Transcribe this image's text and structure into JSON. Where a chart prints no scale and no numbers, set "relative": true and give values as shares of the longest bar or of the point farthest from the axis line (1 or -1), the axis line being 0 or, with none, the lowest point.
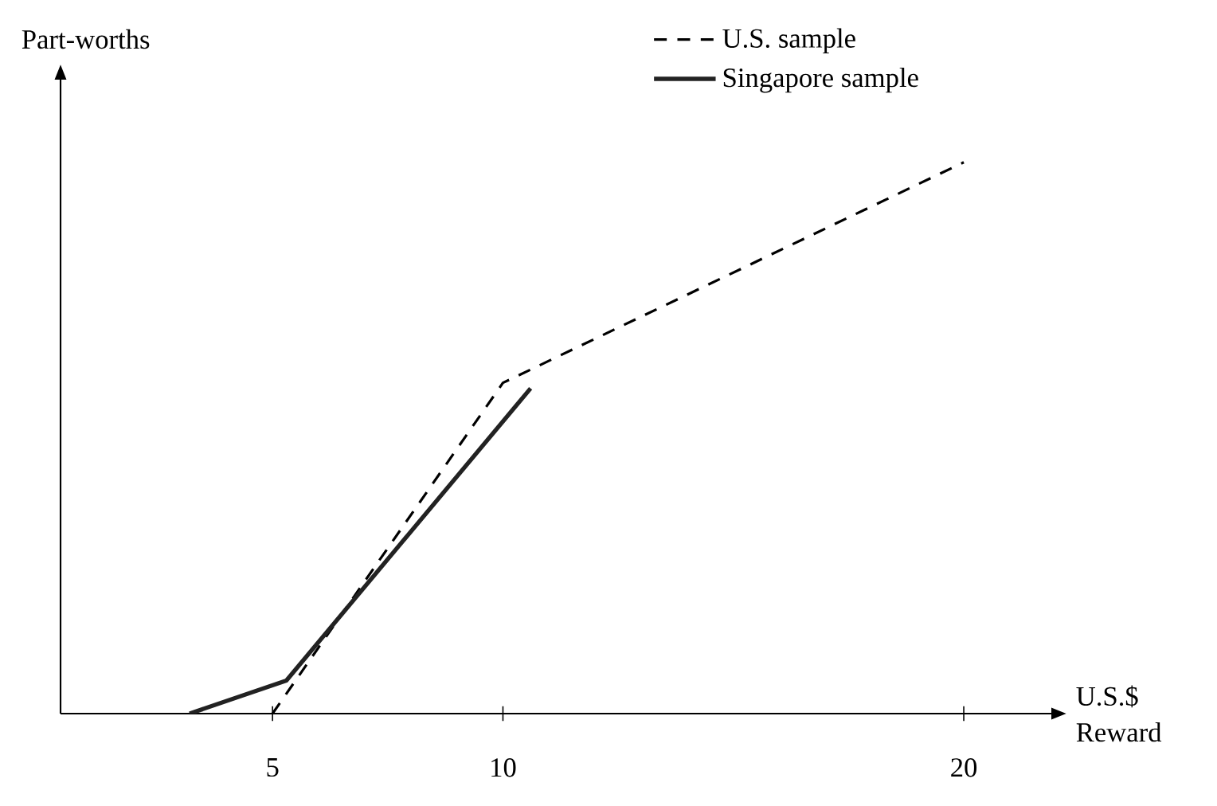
{
  "chart_data": {
    "type": "line",
    "relative": true,
    "xlabel": "U.S.$ Reward",
    "ylabel": "Part-worths",
    "xlim": [
      0.4,
      21.9
    ],
    "xticks": [
      5,
      10,
      20
    ],
    "tick_labels": "x",
    "legend": "top right",
    "grid": false,
    "marker": "none",
    "series": [
      {
        "name": "U.S. sample",
        "color": "#000000",
        "line_style": "dashed",
        "x": [
          5,
          10,
          20
        ],
        "values": [
          0,
          0.6,
          1
        ]
      },
      {
        "name": "Singapore sample",
        "color": "#222222",
        "line_style": "solid",
        "x": [
          3.2,
          5.3,
          10.6
        ],
        "values": [
          0,
          0.06,
          0.59
        ]
      }
    ]
  }
}
